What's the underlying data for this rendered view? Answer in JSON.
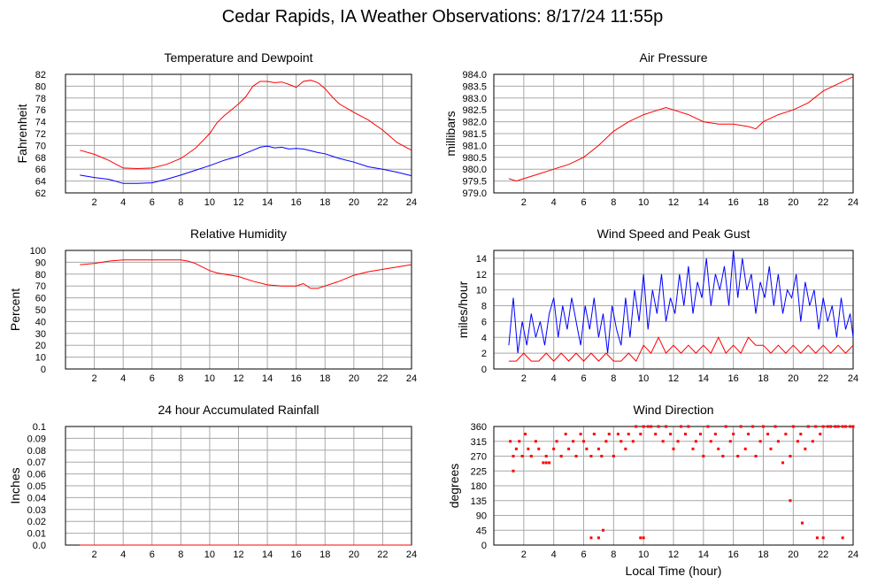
{
  "page": {
    "title": "Cedar Rapids, IA Weather Observations: 8/17/24 11:55p"
  },
  "colors": {
    "red": "#ff0000",
    "blue": "#0000ff",
    "grid": "#a8a8a8"
  },
  "chart_data": [
    {
      "type": "line",
      "title": "Temperature and Dewpoint",
      "ylabel": "Fahrenheit",
      "xlabel": "",
      "xlim": [
        0,
        24
      ],
      "ylim": [
        62,
        82
      ],
      "xticks": [
        "2",
        "4",
        "6",
        "8",
        "10",
        "12",
        "14",
        "16",
        "18",
        "20",
        "22",
        "24"
      ],
      "yticks": [
        "62",
        "64",
        "66",
        "68",
        "70",
        "72",
        "74",
        "76",
        "78",
        "80",
        "82"
      ],
      "grid": true,
      "series": [
        {
          "color": "#ff0000",
          "x": [
            1,
            2,
            3,
            4,
            5,
            6,
            7,
            8,
            9,
            10,
            10.5,
            11,
            11.5,
            12,
            12.5,
            13,
            13.5,
            14,
            14.5,
            15,
            15.5,
            16,
            16.5,
            17,
            17.5,
            18,
            18.5,
            19,
            20,
            21,
            22,
            23,
            24
          ],
          "y": [
            69.2,
            68.5,
            67.5,
            66.2,
            66.1,
            66.2,
            66.8,
            67.8,
            69.5,
            72,
            73.8,
            75,
            76,
            77,
            78.2,
            80,
            80.8,
            80.8,
            80.6,
            80.7,
            80.3,
            79.8,
            80.8,
            81,
            80.6,
            79.6,
            78.2,
            77,
            75.6,
            74.3,
            72.6,
            70.5,
            69.2
          ]
        },
        {
          "color": "#0000ff",
          "x": [
            1,
            2,
            3,
            4,
            5,
            6,
            7,
            8,
            9,
            10,
            11,
            12,
            12.5,
            13,
            13.5,
            14,
            14.5,
            15,
            15.5,
            16,
            16.5,
            17,
            17.5,
            18,
            18.5,
            19,
            20,
            21,
            22,
            23,
            24
          ],
          "y": [
            65,
            64.6,
            64.3,
            63.6,
            63.6,
            63.7,
            64.3,
            65,
            65.8,
            66.6,
            67.5,
            68.2,
            68.7,
            69.2,
            69.7,
            69.9,
            69.6,
            69.7,
            69.4,
            69.5,
            69.4,
            69.1,
            68.8,
            68.6,
            68.2,
            67.8,
            67.2,
            66.4,
            66,
            65.5,
            64.9
          ]
        }
      ]
    },
    {
      "type": "line",
      "title": "Air Pressure",
      "ylabel": "millibars",
      "xlabel": "",
      "xlim": [
        0,
        24
      ],
      "ylim": [
        979.0,
        984.0
      ],
      "xticks": [
        "2",
        "4",
        "6",
        "8",
        "10",
        "12",
        "14",
        "16",
        "18",
        "20",
        "22",
        "24"
      ],
      "yticks": [
        "979.0",
        "979.5",
        "980.0",
        "980.5",
        "981.0",
        "981.5",
        "982.0",
        "982.5",
        "983.0",
        "983.5",
        "984.0"
      ],
      "grid": true,
      "series": [
        {
          "color": "#ff0000",
          "x": [
            1,
            1.5,
            2,
            3,
            4,
            5,
            6,
            7,
            8,
            9,
            10,
            11,
            11.5,
            12,
            13,
            14,
            15,
            16,
            17,
            17.5,
            18,
            19,
            20,
            21,
            22,
            23,
            24
          ],
          "y": [
            979.6,
            979.5,
            979.6,
            979.8,
            980.0,
            980.2,
            980.5,
            981.0,
            981.6,
            982.0,
            982.3,
            982.5,
            982.6,
            982.5,
            982.3,
            982.0,
            981.9,
            981.9,
            981.8,
            981.7,
            982.0,
            982.3,
            982.5,
            982.8,
            983.3,
            983.6,
            983.9
          ]
        }
      ]
    },
    {
      "type": "line",
      "title": "Relative Humidity",
      "ylabel": "Percent",
      "xlabel": "",
      "xlim": [
        0,
        24
      ],
      "ylim": [
        0,
        100
      ],
      "xticks": [
        "2",
        "4",
        "6",
        "8",
        "10",
        "12",
        "14",
        "16",
        "18",
        "20",
        "22",
        "24"
      ],
      "yticks": [
        "0",
        "10",
        "20",
        "30",
        "40",
        "50",
        "60",
        "70",
        "80",
        "90",
        "100"
      ],
      "grid": true,
      "series": [
        {
          "color": "#ff0000",
          "x": [
            1,
            2,
            3,
            4,
            5,
            6,
            7,
            8,
            8.5,
            9,
            9.5,
            10,
            10.5,
            11,
            12,
            13,
            14,
            15,
            16,
            16.5,
            17,
            17.5,
            18,
            19,
            20,
            21,
            22,
            23,
            24
          ],
          "y": [
            88,
            89,
            91,
            92,
            92,
            92,
            92,
            92,
            91,
            89,
            86,
            83,
            81,
            80,
            78,
            74,
            71,
            70,
            70,
            72,
            68,
            68,
            70,
            74,
            79,
            82,
            84,
            86,
            88
          ]
        }
      ]
    },
    {
      "type": "line",
      "title": "Wind Speed and Peak Gust",
      "ylabel": "miles/hour",
      "xlabel": "",
      "xlim": [
        0,
        24
      ],
      "ylim": [
        0,
        15
      ],
      "xticks": [
        "2",
        "4",
        "6",
        "8",
        "10",
        "12",
        "14",
        "16",
        "18",
        "20",
        "22",
        "24"
      ],
      "yticks": [
        "0",
        "2",
        "4",
        "6",
        "8",
        "10",
        "12",
        "14"
      ],
      "grid": true,
      "series": [
        {
          "color": "#0000ff",
          "x": [
            1,
            1.3,
            1.6,
            1.9,
            2.2,
            2.5,
            2.8,
            3.1,
            3.4,
            3.7,
            4,
            4.3,
            4.6,
            4.9,
            5.2,
            5.5,
            5.8,
            6.1,
            6.4,
            6.7,
            7,
            7.3,
            7.6,
            7.9,
            8.2,
            8.5,
            8.8,
            9.1,
            9.4,
            9.7,
            10,
            10.3,
            10.6,
            10.9,
            11.2,
            11.5,
            11.8,
            12.1,
            12.4,
            12.7,
            13,
            13.3,
            13.6,
            13.9,
            14.2,
            14.5,
            14.8,
            15.1,
            15.4,
            15.7,
            16,
            16.3,
            16.6,
            16.9,
            17.2,
            17.5,
            17.8,
            18.1,
            18.4,
            18.7,
            19,
            19.3,
            19.6,
            19.9,
            20.2,
            20.5,
            20.8,
            21.1,
            21.4,
            21.7,
            22,
            22.3,
            22.6,
            22.9,
            23.2,
            23.5,
            23.8,
            24
          ],
          "y": [
            3,
            9,
            2,
            6,
            3,
            7,
            4,
            6,
            3,
            7,
            9,
            4,
            8,
            5,
            9,
            6,
            3,
            8,
            5,
            9,
            4,
            7,
            2,
            8,
            5,
            3,
            9,
            4,
            10,
            6,
            12,
            5,
            10,
            7,
            12,
            6,
            9,
            7,
            12,
            8,
            13,
            7,
            11,
            9,
            14,
            8,
            12,
            10,
            13,
            8,
            15,
            9,
            14,
            10,
            12,
            7,
            11,
            9,
            13,
            8,
            12,
            7,
            10,
            9,
            12,
            6,
            11,
            8,
            10,
            5,
            9,
            6,
            8,
            4,
            9,
            5,
            7,
            4
          ]
        },
        {
          "color": "#ff0000",
          "x": [
            1,
            1.5,
            2,
            2.5,
            3,
            3.5,
            4,
            4.5,
            5,
            5.5,
            6,
            6.5,
            7,
            7.5,
            8,
            8.5,
            9,
            9.5,
            10,
            10.5,
            11,
            11.5,
            12,
            12.5,
            13,
            13.5,
            14,
            14.5,
            15,
            15.5,
            16,
            16.5,
            17,
            17.5,
            18,
            18.5,
            19,
            19.5,
            20,
            20.5,
            21,
            21.5,
            22,
            22.5,
            23,
            23.5,
            24
          ],
          "y": [
            1,
            1,
            2,
            1,
            1,
            2,
            1,
            2,
            1,
            2,
            1,
            2,
            1,
            2,
            1,
            1,
            2,
            1,
            3,
            2,
            4,
            2,
            3,
            2,
            3,
            2,
            3,
            2,
            4,
            2,
            3,
            2,
            4,
            3,
            3,
            2,
            3,
            2,
            3,
            2,
            3,
            2,
            3,
            2,
            3,
            2,
            3
          ]
        }
      ]
    },
    {
      "type": "line",
      "title": "24 hour Accumulated Rainfall",
      "ylabel": "Inches",
      "xlabel": "",
      "xlim": [
        0,
        24
      ],
      "ylim": [
        0,
        0.1
      ],
      "xticks": [
        "2",
        "4",
        "6",
        "8",
        "10",
        "12",
        "14",
        "16",
        "18",
        "20",
        "22",
        "24"
      ],
      "yticks": [
        "0.0",
        "0.01",
        "0.02",
        "0.03",
        "0.04",
        "0.05",
        "0.06",
        "0.07",
        "0.08",
        "0.09",
        "0.1"
      ],
      "grid": true,
      "series": [
        {
          "color": "#ff0000",
          "x": [
            1,
            24
          ],
          "y": [
            0,
            0
          ]
        }
      ]
    },
    {
      "type": "scatter",
      "title": "Wind Direction",
      "ylabel": "degrees",
      "xlabel": "Local Time (hour)",
      "xlim": [
        0,
        24
      ],
      "ylim": [
        0,
        360
      ],
      "xticks": [
        "2",
        "4",
        "6",
        "8",
        "10",
        "12",
        "14",
        "16",
        "18",
        "20",
        "22",
        "24"
      ],
      "yticks": [
        "0",
        "45",
        "90",
        "135",
        "180",
        "225",
        "270",
        "315",
        "360"
      ],
      "grid": true,
      "series": [
        {
          "color": "#ff0000",
          "x": [
            1.1,
            1.3,
            1.5,
            1.7,
            1.9,
            2.1,
            2.3,
            2.5,
            2.8,
            3,
            3.3,
            3.5,
            3.7,
            4,
            4.2,
            4.5,
            4.8,
            5,
            5.3,
            5.5,
            5.8,
            6,
            6.2,
            6.5,
            6.7,
            7,
            7.2,
            7.5,
            7.7,
            8,
            8.3,
            8.5,
            8.8,
            9,
            9.3,
            9.5,
            9.8,
            10,
            10.3,
            10.5,
            10.8,
            11,
            11.3,
            11.5,
            11.8,
            12,
            12.3,
            12.5,
            12.8,
            13,
            13.3,
            13.5,
            13.8,
            14,
            14.3,
            14.5,
            14.8,
            15,
            15.3,
            15.5,
            15.8,
            16,
            16.3,
            16.5,
            16.8,
            17,
            17.3,
            17.5,
            17.8,
            18,
            18.3,
            18.5,
            18.8,
            19,
            19.3,
            19.5,
            19.8,
            20,
            20.3,
            20.5,
            20.8,
            21,
            21.3,
            21.5,
            21.8,
            22,
            22.3,
            22.5,
            22.8,
            23,
            23.3,
            23.5,
            23.8,
            24,
            1.3,
            3.5,
            6.5,
            7,
            7.3,
            9.8,
            10,
            19.8,
            20.6,
            21.6,
            22,
            23.3
          ],
          "y": [
            315,
            270,
            292,
            315,
            270,
            337,
            292,
            270,
            315,
            292,
            250,
            270,
            250,
            292,
            315,
            270,
            337,
            292,
            315,
            270,
            337,
            315,
            292,
            270,
            337,
            292,
            270,
            315,
            337,
            270,
            337,
            315,
            292,
            337,
            315,
            360,
            337,
            360,
            360,
            360,
            337,
            360,
            315,
            360,
            337,
            292,
            315,
            360,
            337,
            360,
            292,
            315,
            337,
            270,
            360,
            315,
            337,
            292,
            270,
            360,
            315,
            337,
            270,
            360,
            292,
            337,
            360,
            270,
            315,
            360,
            337,
            292,
            360,
            315,
            250,
            337,
            270,
            360,
            315,
            337,
            292,
            360,
            315,
            360,
            337,
            360,
            360,
            360,
            360,
            360,
            360,
            360,
            360,
            360,
            225,
            250,
            22,
            22,
            45,
            22,
            22,
            135,
            67,
            22,
            22,
            22
          ]
        }
      ]
    }
  ]
}
